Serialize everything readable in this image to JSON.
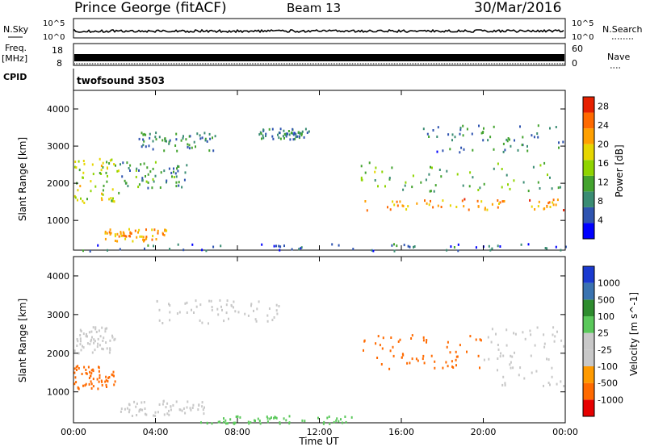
{
  "header": {
    "station": "Prince George (fitACF)",
    "beam": "Beam 13",
    "date": "30/Mar/2016"
  },
  "noise_panel": {
    "left_label": "N.Sky",
    "right_label": "N.Search",
    "left_ticks": [
      "10^5",
      "10^0"
    ],
    "right_ticks": [
      "10^5",
      "10^0"
    ]
  },
  "freq_panel": {
    "left_label_1": "Freq.",
    "left_label_2": "[MHz]",
    "left_ticks": [
      "18",
      "8"
    ],
    "right_label": "Nave",
    "right_ticks": [
      "60",
      "0"
    ]
  },
  "cpid": {
    "label": "CPID",
    "value": "twofsound 3503"
  },
  "x_axis": {
    "label": "Time UT",
    "ticks": [
      "00:00",
      "04:00",
      "08:00",
      "12:00",
      "16:00",
      "20:00",
      "00:00"
    ]
  },
  "colors": {
    "power_scale": [
      "#0000ff",
      "#2f54b0",
      "#3a8c73",
      "#43a32e",
      "#8fd400",
      "#e6d600",
      "#ffa000",
      "#ff6a00",
      "#e62000"
    ],
    "velocity_scale": [
      "#e60000",
      "#ff6a00",
      "#ff9a00",
      "#c8c8c8",
      "#c8c8c8",
      "#5ac85a",
      "#2e8c2e",
      "#3a73b0",
      "#1a3ad0"
    ]
  },
  "chart_data": [
    {
      "type": "heatmap",
      "name": "power",
      "ylabel": "Slant Range [km]",
      "ylim": [
        200,
        4500
      ],
      "xlim_hours": [
        0,
        24
      ],
      "yticks": [
        "1000",
        "2000",
        "3000",
        "4000"
      ],
      "colorbar_label": "Power [dB]",
      "colorbar_ticks": [
        "4",
        "8",
        "12",
        "16",
        "20",
        "24",
        "28"
      ],
      "colorbar_range": [
        0,
        30
      ],
      "bands": [
        {
          "t": [
            0.0,
            2.2
          ],
          "r": [
            1500,
            2700
          ],
          "value": 16
        },
        {
          "t": [
            2.2,
            5.5
          ],
          "r": [
            1900,
            2600
          ],
          "value": 10
        },
        {
          "t": [
            1.5,
            4.5
          ],
          "r": [
            450,
            800
          ],
          "value": 22
        },
        {
          "t": [
            3.0,
            7.0
          ],
          "r": [
            2900,
            3400
          ],
          "value": 8
        },
        {
          "t": [
            9.0,
            11.5
          ],
          "r": [
            3200,
            3500
          ],
          "value": 8
        },
        {
          "t": [
            14.0,
            24.0
          ],
          "r": [
            1300,
            1600
          ],
          "value": 22
        },
        {
          "t": [
            14.0,
            24.0
          ],
          "r": [
            1800,
            2600
          ],
          "value": 12
        },
        {
          "t": [
            17.0,
            24.0
          ],
          "r": [
            2800,
            3600
          ],
          "value": 8
        },
        {
          "t": [
            0.0,
            24.0
          ],
          "r": [
            200,
            400
          ],
          "value": 6
        }
      ]
    },
    {
      "type": "heatmap",
      "name": "velocity",
      "ylabel": "Slant Range [km]",
      "ylim": [
        200,
        4500
      ],
      "xlim_hours": [
        0,
        24
      ],
      "yticks": [
        "1000",
        "2000",
        "3000",
        "4000"
      ],
      "colorbar_label": "Velocity [m s^-1]",
      "colorbar_ticks": [
        "1000",
        "500",
        "100",
        "25",
        "-25",
        "-100",
        "-500",
        "-1000"
      ],
      "bands": [
        {
          "t": [
            0.0,
            2.0
          ],
          "r": [
            1100,
            1700
          ],
          "value": -300
        },
        {
          "t": [
            0.0,
            2.0
          ],
          "r": [
            2000,
            2700
          ],
          "value": 0
        },
        {
          "t": [
            2.0,
            6.5
          ],
          "r": [
            400,
            800
          ],
          "value": 0
        },
        {
          "t": [
            4.0,
            10.0
          ],
          "r": [
            2800,
            3400
          ],
          "value": 0
        },
        {
          "t": [
            14.0,
            20.0
          ],
          "r": [
            1600,
            2500
          ],
          "value": -300
        },
        {
          "t": [
            20.0,
            24.0
          ],
          "r": [
            1100,
            2700
          ],
          "value": 0
        },
        {
          "t": [
            6.0,
            14.0
          ],
          "r": [
            200,
            400
          ],
          "value": 50
        }
      ]
    }
  ]
}
